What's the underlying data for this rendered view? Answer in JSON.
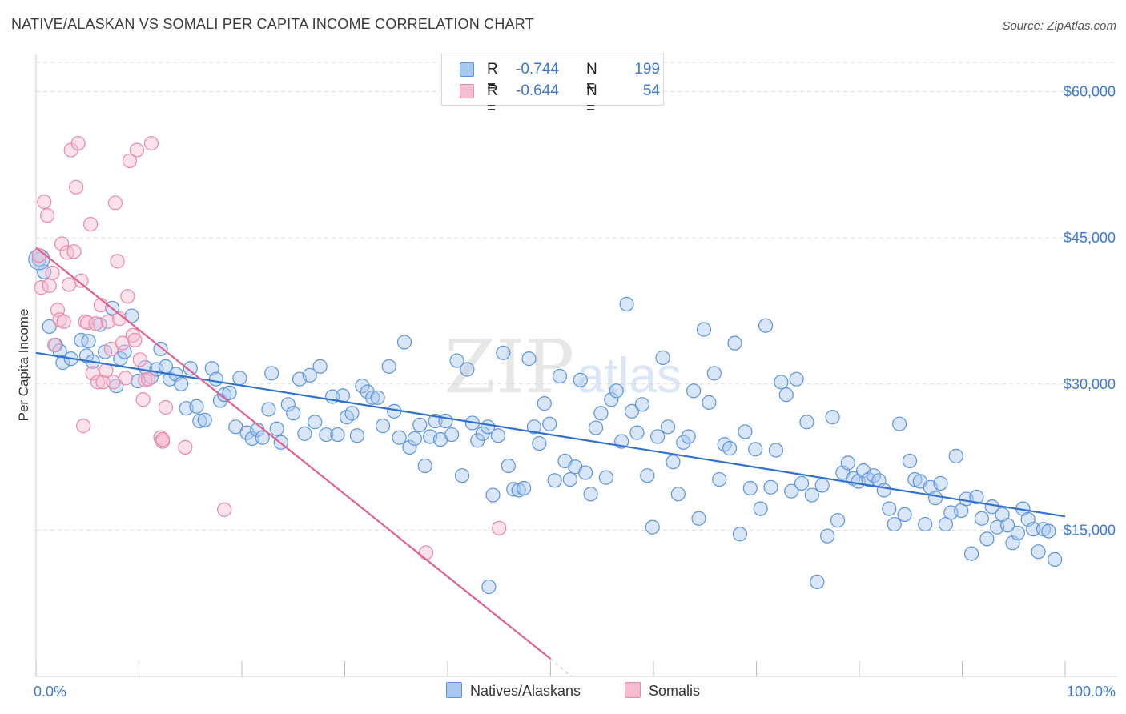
{
  "title": "NATIVE/ALASKAN VS SOMALI PER CAPITA INCOME CORRELATION CHART",
  "source": "Source: ZipAtlas.com",
  "watermark": {
    "zip": "ZIP",
    "atlas": "atlas"
  },
  "legend": {
    "series1": {
      "r_label": "R =",
      "r_value": "-0.744",
      "n_label": "N =",
      "n_value": "199"
    },
    "series2": {
      "r_label": "R =",
      "r_value": "-0.644",
      "n_label": "N =",
      "n_value": "54"
    }
  },
  "colors": {
    "blue_fill": "#a9c8f0",
    "blue_stroke": "#5b93dc",
    "blue_line": "#2f6fd1",
    "pink_fill": "#f6bcd0",
    "pink_stroke": "#e889a9",
    "pink_line": "#e0608e",
    "axis_text": "#3a78d4",
    "grid": "#dddddd"
  },
  "chart_data": {
    "type": "scatter",
    "title": "NATIVE/ALASKAN VS SOMALI PER CAPITA INCOME CORRELATION CHART",
    "xlabel": "",
    "ylabel": "Per Capita Income",
    "xlim": [
      0,
      100
    ],
    "ylim": [
      0,
      63000
    ],
    "x_tick_labels": [
      "0.0%",
      "100.0%"
    ],
    "y_ticks": [
      15000,
      30000,
      45000,
      60000
    ],
    "y_tick_labels": [
      "$15,000",
      "$30,000",
      "$45,000",
      "$60,000"
    ],
    "series": [
      {
        "name": "Natives/Alaskans",
        "trendline": {
          "x": [
            0,
            100
          ],
          "y": [
            33200,
            16400
          ]
        },
        "points": [
          [
            0.3,
            42800
          ],
          [
            0.8,
            41500
          ],
          [
            1.3,
            35900
          ],
          [
            1.9,
            34000
          ],
          [
            2.3,
            33400
          ],
          [
            2.6,
            32200
          ],
          [
            3.4,
            32600
          ],
          [
            4.4,
            34500
          ],
          [
            4.9,
            32900
          ],
          [
            5.1,
            34400
          ],
          [
            5.5,
            32300
          ],
          [
            6.2,
            36100
          ],
          [
            6.7,
            33300
          ],
          [
            7.4,
            37800
          ],
          [
            7.8,
            29800
          ],
          [
            8.2,
            32600
          ],
          [
            8.6,
            33300
          ],
          [
            9.3,
            37000
          ],
          [
            9.9,
            30300
          ],
          [
            10.6,
            31700
          ],
          [
            11.2,
            30700
          ],
          [
            11.7,
            31500
          ],
          [
            12.1,
            33600
          ],
          [
            12.6,
            31800
          ],
          [
            13.0,
            30500
          ],
          [
            13.6,
            31000
          ],
          [
            14.1,
            30000
          ],
          [
            14.6,
            27500
          ],
          [
            15.0,
            31600
          ],
          [
            15.6,
            27700
          ],
          [
            15.9,
            26200
          ],
          [
            16.4,
            26300
          ],
          [
            17.1,
            31600
          ],
          [
            17.5,
            30500
          ],
          [
            17.9,
            28300
          ],
          [
            18.3,
            28900
          ],
          [
            18.8,
            29100
          ],
          [
            19.4,
            25600
          ],
          [
            19.8,
            30600
          ],
          [
            20.5,
            25000
          ],
          [
            21.0,
            24400
          ],
          [
            21.5,
            25300
          ],
          [
            22.0,
            24500
          ],
          [
            22.6,
            27400
          ],
          [
            22.9,
            31100
          ],
          [
            23.4,
            25400
          ],
          [
            23.8,
            24000
          ],
          [
            24.5,
            27900
          ],
          [
            25.0,
            27000
          ],
          [
            25.6,
            30500
          ],
          [
            26.1,
            24900
          ],
          [
            26.6,
            30900
          ],
          [
            27.1,
            26100
          ],
          [
            27.6,
            31800
          ],
          [
            28.2,
            24800
          ],
          [
            28.8,
            28700
          ],
          [
            29.3,
            24800
          ],
          [
            29.8,
            28800
          ],
          [
            30.2,
            26600
          ],
          [
            30.7,
            27000
          ],
          [
            31.2,
            24700
          ],
          [
            31.7,
            29800
          ],
          [
            32.2,
            29200
          ],
          [
            32.7,
            28600
          ],
          [
            33.2,
            28600
          ],
          [
            33.7,
            25700
          ],
          [
            34.3,
            31800
          ],
          [
            34.8,
            27200
          ],
          [
            35.3,
            24500
          ],
          [
            35.8,
            34300
          ],
          [
            36.3,
            23500
          ],
          [
            36.8,
            24400
          ],
          [
            37.3,
            25800
          ],
          [
            37.8,
            21600
          ],
          [
            38.3,
            24600
          ],
          [
            38.8,
            26200
          ],
          [
            39.3,
            24300
          ],
          [
            39.8,
            26200
          ],
          [
            40.4,
            24800
          ],
          [
            40.9,
            32400
          ],
          [
            41.4,
            20600
          ],
          [
            41.9,
            31500
          ],
          [
            42.4,
            26000
          ],
          [
            42.9,
            24200
          ],
          [
            43.4,
            24900
          ],
          [
            43.9,
            25600
          ],
          [
            44.4,
            18600
          ],
          [
            44.9,
            24700
          ],
          [
            45.4,
            33200
          ],
          [
            45.9,
            21600
          ],
          [
            46.4,
            19200
          ],
          [
            46.9,
            19100
          ],
          [
            47.4,
            19300
          ],
          [
            47.9,
            32600
          ],
          [
            48.4,
            25600
          ],
          [
            48.9,
            23900
          ],
          [
            49.4,
            28000
          ],
          [
            49.9,
            25900
          ],
          [
            50.4,
            20100
          ],
          [
            50.9,
            30800
          ],
          [
            51.4,
            22100
          ],
          [
            51.9,
            20200
          ],
          [
            52.4,
            21500
          ],
          [
            52.9,
            30400
          ],
          [
            53.4,
            20900
          ],
          [
            53.9,
            18700
          ],
          [
            54.4,
            25500
          ],
          [
            54.9,
            27000
          ],
          [
            55.4,
            20400
          ],
          [
            55.9,
            28400
          ],
          [
            56.4,
            29300
          ],
          [
            56.9,
            24100
          ],
          [
            57.4,
            38200
          ],
          [
            57.9,
            27200
          ],
          [
            58.4,
            25000
          ],
          [
            58.9,
            27900
          ],
          [
            59.4,
            20600
          ],
          [
            59.9,
            15300
          ],
          [
            60.4,
            24600
          ],
          [
            60.9,
            32700
          ],
          [
            61.4,
            25600
          ],
          [
            61.9,
            22000
          ],
          [
            62.4,
            18700
          ],
          [
            62.9,
            24000
          ],
          [
            63.4,
            24600
          ],
          [
            63.9,
            29300
          ],
          [
            64.4,
            16200
          ],
          [
            64.9,
            35600
          ],
          [
            65.4,
            28100
          ],
          [
            65.9,
            31100
          ],
          [
            66.4,
            20200
          ],
          [
            66.9,
            23800
          ],
          [
            67.4,
            23400
          ],
          [
            67.9,
            34200
          ],
          [
            68.4,
            14600
          ],
          [
            68.9,
            25100
          ],
          [
            69.4,
            19300
          ],
          [
            69.9,
            23300
          ],
          [
            70.4,
            17200
          ],
          [
            70.9,
            36000
          ],
          [
            71.4,
            19400
          ],
          [
            71.9,
            23200
          ],
          [
            72.4,
            30200
          ],
          [
            72.9,
            28900
          ],
          [
            73.4,
            19000
          ],
          [
            73.9,
            30500
          ],
          [
            74.4,
            19800
          ],
          [
            74.9,
            26100
          ],
          [
            75.4,
            18600
          ],
          [
            75.9,
            9700
          ],
          [
            76.4,
            19600
          ],
          [
            76.9,
            14400
          ],
          [
            77.4,
            26600
          ],
          [
            77.9,
            16000
          ],
          [
            78.4,
            20900
          ],
          [
            78.9,
            21900
          ],
          [
            79.4,
            20300
          ],
          [
            79.9,
            20000
          ],
          [
            80.4,
            21100
          ],
          [
            80.9,
            20200
          ],
          [
            81.4,
            20600
          ],
          [
            81.9,
            20100
          ],
          [
            82.4,
            19100
          ],
          [
            82.9,
            17200
          ],
          [
            83.4,
            15600
          ],
          [
            83.9,
            25900
          ],
          [
            84.4,
            16600
          ],
          [
            84.9,
            22100
          ],
          [
            85.4,
            20200
          ],
          [
            85.9,
            20000
          ],
          [
            86.4,
            15600
          ],
          [
            86.9,
            19400
          ],
          [
            87.4,
            18300
          ],
          [
            87.9,
            19800
          ],
          [
            88.4,
            15600
          ],
          [
            88.9,
            16800
          ],
          [
            89.4,
            22600
          ],
          [
            89.9,
            17000
          ],
          [
            90.4,
            18200
          ],
          [
            90.9,
            12600
          ],
          [
            91.4,
            18400
          ],
          [
            91.9,
            16200
          ],
          [
            92.4,
            14100
          ],
          [
            92.9,
            17400
          ],
          [
            93.4,
            15300
          ],
          [
            93.9,
            16600
          ],
          [
            94.4,
            15500
          ],
          [
            94.9,
            13700
          ],
          [
            95.4,
            14700
          ],
          [
            95.9,
            17200
          ],
          [
            96.4,
            16100
          ],
          [
            96.9,
            15100
          ],
          [
            97.4,
            12800
          ],
          [
            97.9,
            15100
          ],
          [
            98.4,
            14900
          ],
          [
            99.0,
            12000
          ],
          [
            44.0,
            9200
          ]
        ]
      },
      {
        "name": "Somalis",
        "trendline": {
          "x": [
            0,
            50
          ],
          "y": [
            44000,
            1800
          ]
        },
        "trendline_dashed_extension": {
          "x": [
            50,
            52
          ],
          "y": [
            1800,
            0
          ]
        },
        "points": [
          [
            0.3,
            43200
          ],
          [
            0.5,
            39900
          ],
          [
            0.8,
            48700
          ],
          [
            1.1,
            47300
          ],
          [
            1.3,
            40100
          ],
          [
            1.6,
            41400
          ],
          [
            1.8,
            34000
          ],
          [
            2.1,
            37600
          ],
          [
            2.3,
            36600
          ],
          [
            2.5,
            44400
          ],
          [
            2.7,
            36400
          ],
          [
            3.0,
            43500
          ],
          [
            3.2,
            40200
          ],
          [
            3.4,
            54000
          ],
          [
            3.7,
            43600
          ],
          [
            3.9,
            50200
          ],
          [
            4.1,
            54700
          ],
          [
            4.4,
            40600
          ],
          [
            4.6,
            25700
          ],
          [
            4.8,
            36400
          ],
          [
            5.0,
            36300
          ],
          [
            5.3,
            46400
          ],
          [
            5.5,
            31100
          ],
          [
            5.8,
            36200
          ],
          [
            6.0,
            30200
          ],
          [
            6.3,
            38100
          ],
          [
            6.5,
            30200
          ],
          [
            6.8,
            31400
          ],
          [
            7.0,
            36400
          ],
          [
            7.3,
            33600
          ],
          [
            7.5,
            30200
          ],
          [
            7.7,
            48600
          ],
          [
            7.9,
            42600
          ],
          [
            8.1,
            36700
          ],
          [
            8.4,
            34200
          ],
          [
            8.7,
            30600
          ],
          [
            8.9,
            39000
          ],
          [
            9.1,
            52900
          ],
          [
            9.4,
            35000
          ],
          [
            9.6,
            34500
          ],
          [
            9.8,
            54000
          ],
          [
            10.1,
            32500
          ],
          [
            10.4,
            28400
          ],
          [
            10.6,
            30400
          ],
          [
            10.9,
            30500
          ],
          [
            11.2,
            54700
          ],
          [
            12.1,
            24500
          ],
          [
            12.3,
            24100
          ],
          [
            12.6,
            27600
          ],
          [
            14.5,
            23500
          ],
          [
            18.3,
            17100
          ],
          [
            37.9,
            12700
          ],
          [
            45.0,
            15200
          ],
          [
            12.3,
            24300
          ]
        ]
      }
    ]
  },
  "bottom_legend": {
    "series1": "Natives/Alaskans",
    "series2": "Somalis"
  }
}
